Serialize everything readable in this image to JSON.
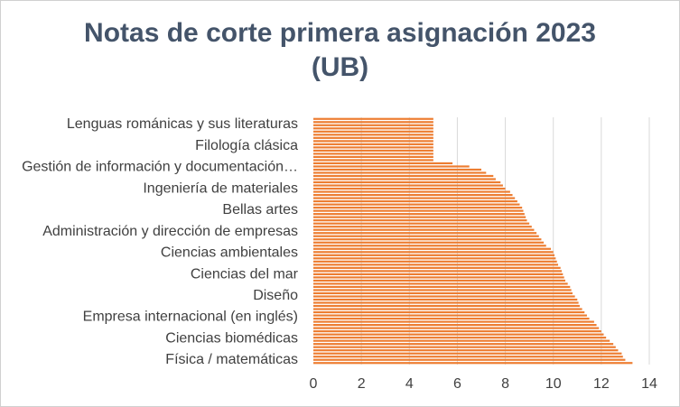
{
  "chart_data": {
    "type": "bar",
    "orientation": "horizontal",
    "title_line1": "Notas de corte primera asignación 2023",
    "title_line2": "(UB)",
    "xlabel": "",
    "ylabel": "",
    "xlim": [
      0,
      14
    ],
    "xticks": [
      "0",
      "2",
      "4",
      "6",
      "8",
      "10",
      "12",
      "14"
    ],
    "grid": "vertical",
    "legend": "none",
    "bar_color": "#ed7d31",
    "grid_color": "#d9d9d9",
    "visible_category_labels": [
      "Lenguas románicas y sus literaturas",
      "Filología clásica",
      "Gestión de información y documentación…",
      "Ingeniería de materiales",
      "Bellas artes",
      "Administración y dirección de empresas",
      "Ciencias ambientales",
      "Ciencias del mar",
      "Diseño",
      "Empresa internacional (en inglés)",
      "Ciencias biomédicas",
      "Física / matemáticas"
    ],
    "values": [
      5.0,
      5.0,
      5.0,
      5.0,
      5.0,
      5.0,
      5.0,
      5.0,
      5.0,
      5.0,
      5.0,
      5.0,
      5.0,
      5.0,
      5.8,
      6.5,
      7.0,
      7.2,
      7.5,
      7.6,
      7.8,
      7.9,
      8.0,
      8.2,
      8.3,
      8.4,
      8.5,
      8.6,
      8.7,
      8.75,
      8.8,
      8.85,
      8.9,
      9.0,
      9.1,
      9.2,
      9.3,
      9.4,
      9.5,
      9.6,
      9.7,
      9.9,
      10.0,
      10.05,
      10.1,
      10.15,
      10.2,
      10.3,
      10.35,
      10.4,
      10.45,
      10.5,
      10.6,
      10.7,
      10.75,
      10.8,
      10.9,
      11.0,
      11.05,
      11.1,
      11.2,
      11.3,
      11.4,
      11.5,
      11.7,
      11.8,
      11.9,
      12.0,
      12.1,
      12.2,
      12.35,
      12.5,
      12.6,
      12.7,
      12.85,
      12.9,
      13.0,
      13.3
    ]
  }
}
